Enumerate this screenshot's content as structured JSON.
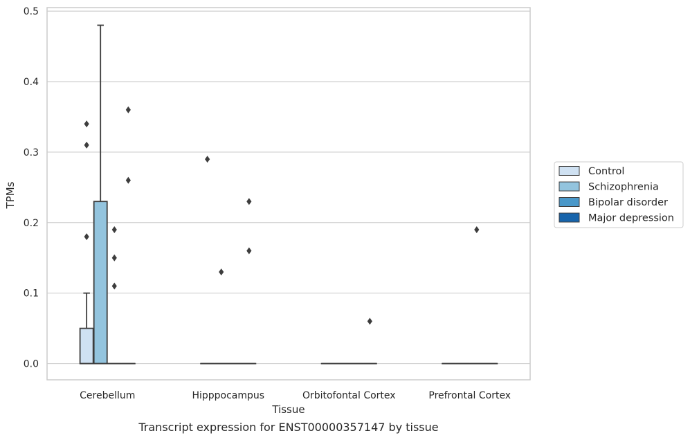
{
  "chart_data": {
    "type": "box",
    "title": "",
    "caption": "Transcript expression for ENST00000357147 by tissue",
    "xlabel": "Tissue",
    "ylabel": "TPMs",
    "ylim": [
      -0.023,
      0.505
    ],
    "yticks": [
      0.0,
      0.1,
      0.2,
      0.3,
      0.4,
      0.5
    ],
    "ytick_labels": [
      "0.0",
      "0.1",
      "0.2",
      "0.3",
      "0.4",
      "0.5"
    ],
    "grid": "y",
    "legend_position": "right",
    "categories": [
      "Cerebellum",
      "Hipppocampus",
      "Orbitofontal Cortex",
      "Prefrontal Cortex"
    ],
    "series": [
      {
        "name": "Control",
        "color": "#cfe1f2",
        "boxes": [
          {
            "q1": 0.0,
            "median": 0.0,
            "q3": 0.05,
            "whisker_low": 0.0,
            "whisker_high": 0.1,
            "outliers": [
              0.18,
              0.31,
              0.34
            ]
          },
          {
            "q1": 0.0,
            "median": 0.0,
            "q3": 0.0,
            "whisker_low": 0.0,
            "whisker_high": 0.0,
            "outliers": [
              0.29
            ]
          },
          {
            "q1": 0.0,
            "median": 0.0,
            "q3": 0.0,
            "whisker_low": 0.0,
            "whisker_high": 0.0,
            "outliers": []
          },
          {
            "q1": 0.0,
            "median": 0.0,
            "q3": 0.0,
            "whisker_low": 0.0,
            "whisker_high": 0.0,
            "outliers": []
          }
        ]
      },
      {
        "name": "Schizophrenia",
        "color": "#93c4de",
        "boxes": [
          {
            "q1": 0.0,
            "median": 0.0,
            "q3": 0.23,
            "whisker_low": 0.0,
            "whisker_high": 0.48,
            "outliers": []
          },
          {
            "q1": 0.0,
            "median": 0.0,
            "q3": 0.0,
            "whisker_low": 0.0,
            "whisker_high": 0.0,
            "outliers": [
              0.13
            ]
          },
          {
            "q1": 0.0,
            "median": 0.0,
            "q3": 0.0,
            "whisker_low": 0.0,
            "whisker_high": 0.0,
            "outliers": []
          },
          {
            "q1": 0.0,
            "median": 0.0,
            "q3": 0.0,
            "whisker_low": 0.0,
            "whisker_high": 0.0,
            "outliers": []
          }
        ]
      },
      {
        "name": "Bipolar disorder",
        "color": "#4a98c9",
        "boxes": [
          {
            "q1": 0.0,
            "median": 0.0,
            "q3": 0.0,
            "whisker_low": 0.0,
            "whisker_high": 0.0,
            "outliers": [
              0.11,
              0.15,
              0.19
            ]
          },
          {
            "q1": 0.0,
            "median": 0.0,
            "q3": 0.0,
            "whisker_low": 0.0,
            "whisker_high": 0.0,
            "outliers": []
          },
          {
            "q1": 0.0,
            "median": 0.0,
            "q3": 0.0,
            "whisker_low": 0.0,
            "whisker_high": 0.0,
            "outliers": []
          },
          {
            "q1": 0.0,
            "median": 0.0,
            "q3": 0.0,
            "whisker_low": 0.0,
            "whisker_high": 0.0,
            "outliers": [
              0.19
            ]
          }
        ]
      },
      {
        "name": "Major depression",
        "color": "#1764ab",
        "boxes": [
          {
            "q1": 0.0,
            "median": 0.0,
            "q3": 0.0,
            "whisker_low": 0.0,
            "whisker_high": 0.0,
            "outliers": [
              0.26,
              0.36
            ]
          },
          {
            "q1": 0.0,
            "median": 0.0,
            "q3": 0.0,
            "whisker_low": 0.0,
            "whisker_high": 0.0,
            "outliers": [
              0.16,
              0.23
            ]
          },
          {
            "q1": 0.0,
            "median": 0.0,
            "q3": 0.0,
            "whisker_low": 0.0,
            "whisker_high": 0.0,
            "outliers": [
              0.06
            ]
          },
          {
            "q1": 0.0,
            "median": 0.0,
            "q3": 0.0,
            "whisker_low": 0.0,
            "whisker_high": 0.0,
            "outliers": []
          }
        ]
      }
    ]
  }
}
